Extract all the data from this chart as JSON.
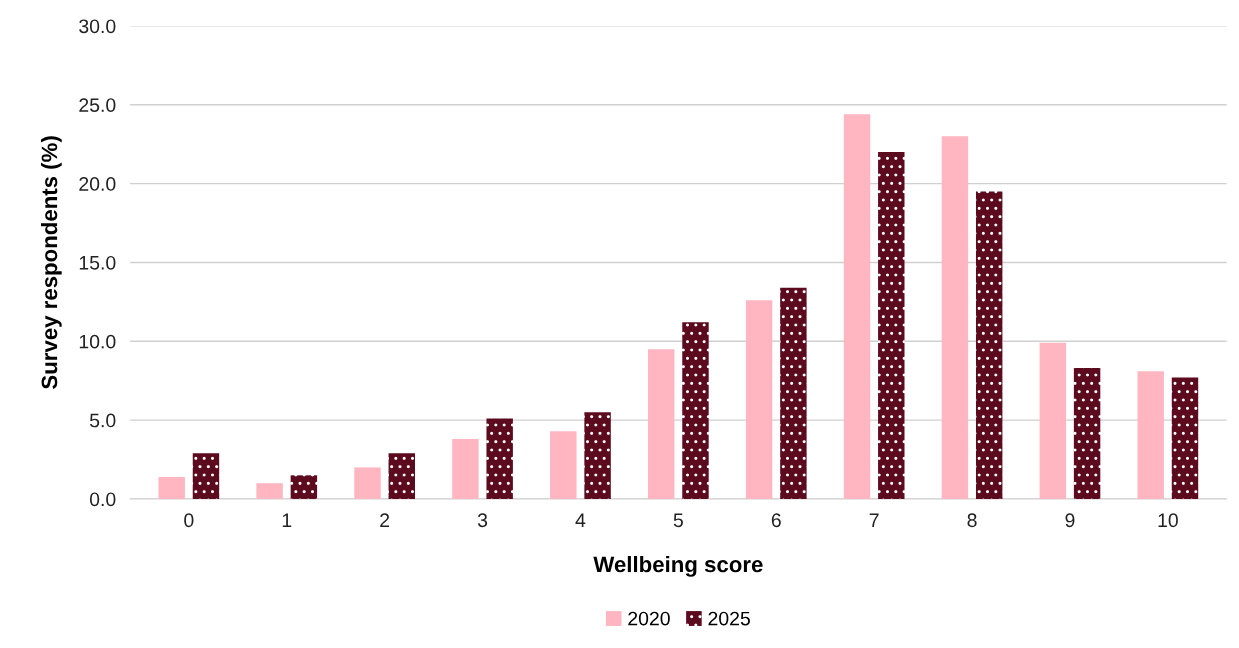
{
  "chart_data": {
    "type": "bar",
    "xlabel": "Wellbeing score",
    "ylabel": "Survey respondents (%)",
    "categories": [
      "0",
      "1",
      "2",
      "3",
      "4",
      "5",
      "6",
      "7",
      "8",
      "9",
      "10"
    ],
    "series": [
      {
        "name": "2020",
        "color": "#ffb6c1",
        "values": [
          1.4,
          1.0,
          2.0,
          3.8,
          4.3,
          9.5,
          12.6,
          24.4,
          23.0,
          9.9,
          8.1
        ]
      },
      {
        "name": "2025",
        "color": "#5c0a1e",
        "values": [
          2.9,
          1.5,
          2.9,
          5.1,
          5.5,
          11.2,
          13.4,
          22.0,
          19.5,
          8.3,
          7.7
        ]
      }
    ],
    "ylim": [
      0,
      30
    ],
    "yticks": [
      {
        "value": 0,
        "label": "0.0"
      },
      {
        "value": 5,
        "label": "5.0"
      },
      {
        "value": 10,
        "label": "10.0"
      },
      {
        "value": 15,
        "label": "15.0"
      },
      {
        "value": 20,
        "label": "20.0"
      },
      {
        "value": 25,
        "label": "25.0"
      },
      {
        "value": 30,
        "label": "30.0"
      }
    ],
    "grid": "y",
    "legend": "bottom"
  }
}
